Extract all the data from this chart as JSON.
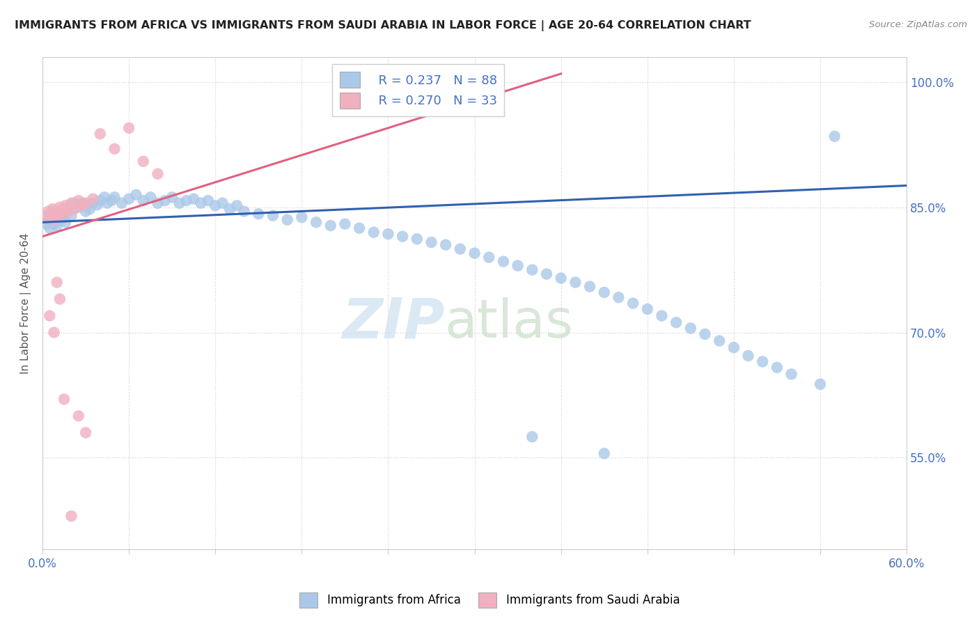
{
  "title": "IMMIGRANTS FROM AFRICA VS IMMIGRANTS FROM SAUDI ARABIA IN LABOR FORCE | AGE 20-64 CORRELATION CHART",
  "source": "Source: ZipAtlas.com",
  "ylabel": "In Labor Force | Age 20-64",
  "legend_blue_label": "Immigrants from Africa",
  "legend_pink_label": "Immigrants from Saudi Arabia",
  "R_blue": 0.237,
  "N_blue": 88,
  "R_pink": 0.27,
  "N_pink": 33,
  "xlim": [
    0.0,
    0.6
  ],
  "ylim": [
    0.44,
    1.03
  ],
  "blue_color": "#aac8e8",
  "pink_color": "#f0b0c0",
  "trend_blue": "#3060b0",
  "trend_pink": "#e06080",
  "background_color": "#ffffff",
  "grid_color": "#d0d0d0",
  "right_tick_color": "#4472c4",
  "bottom_tick_color": "#4472c4",
  "title_color": "#222222",
  "source_color": "#888888",
  "ylabel_color": "#555555",
  "blue_x": [
    0.003,
    0.004,
    0.005,
    0.006,
    0.007,
    0.008,
    0.009,
    0.01,
    0.011,
    0.012,
    0.013,
    0.014,
    0.015,
    0.016,
    0.018,
    0.02,
    0.022,
    0.025,
    0.028,
    0.03,
    0.033,
    0.035,
    0.038,
    0.04,
    0.043,
    0.045,
    0.048,
    0.05,
    0.055,
    0.06,
    0.065,
    0.07,
    0.075,
    0.08,
    0.085,
    0.09,
    0.095,
    0.1,
    0.105,
    0.11,
    0.115,
    0.12,
    0.125,
    0.13,
    0.135,
    0.14,
    0.15,
    0.16,
    0.17,
    0.18,
    0.19,
    0.2,
    0.21,
    0.22,
    0.23,
    0.24,
    0.25,
    0.26,
    0.27,
    0.28,
    0.29,
    0.3,
    0.31,
    0.32,
    0.33,
    0.34,
    0.35,
    0.36,
    0.37,
    0.38,
    0.39,
    0.4,
    0.41,
    0.42,
    0.43,
    0.44,
    0.45,
    0.46,
    0.47,
    0.48,
    0.49,
    0.5,
    0.51,
    0.52,
    0.54,
    0.55,
    0.34,
    0.39
  ],
  "blue_y": [
    0.83,
    0.835,
    0.825,
    0.84,
    0.845,
    0.83,
    0.832,
    0.828,
    0.84,
    0.845,
    0.835,
    0.842,
    0.838,
    0.832,
    0.848,
    0.84,
    0.855,
    0.85,
    0.855,
    0.845,
    0.848,
    0.855,
    0.853,
    0.858,
    0.862,
    0.855,
    0.858,
    0.862,
    0.855,
    0.86,
    0.865,
    0.858,
    0.862,
    0.855,
    0.858,
    0.862,
    0.855,
    0.858,
    0.86,
    0.855,
    0.858,
    0.852,
    0.855,
    0.848,
    0.852,
    0.845,
    0.842,
    0.84,
    0.835,
    0.838,
    0.832,
    0.828,
    0.83,
    0.825,
    0.82,
    0.818,
    0.815,
    0.812,
    0.808,
    0.805,
    0.8,
    0.795,
    0.79,
    0.785,
    0.78,
    0.775,
    0.77,
    0.765,
    0.76,
    0.755,
    0.748,
    0.742,
    0.735,
    0.728,
    0.72,
    0.712,
    0.705,
    0.698,
    0.69,
    0.682,
    0.672,
    0.665,
    0.658,
    0.65,
    0.638,
    0.935,
    0.575,
    0.555
  ],
  "pink_x": [
    0.003,
    0.004,
    0.005,
    0.006,
    0.007,
    0.008,
    0.009,
    0.01,
    0.011,
    0.012,
    0.013,
    0.015,
    0.016,
    0.018,
    0.02,
    0.022,
    0.025,
    0.028,
    0.03,
    0.035,
    0.04,
    0.05,
    0.06,
    0.07,
    0.08,
    0.01,
    0.012,
    0.005,
    0.008,
    0.015,
    0.02,
    0.025,
    0.03
  ],
  "pink_y": [
    0.84,
    0.845,
    0.838,
    0.842,
    0.848,
    0.835,
    0.842,
    0.838,
    0.845,
    0.85,
    0.842,
    0.848,
    0.852,
    0.845,
    0.855,
    0.848,
    0.858,
    0.852,
    0.855,
    0.86,
    0.938,
    0.92,
    0.945,
    0.905,
    0.89,
    0.76,
    0.74,
    0.72,
    0.7,
    0.62,
    0.48,
    0.6,
    0.58
  ],
  "blue_trend": [
    0.0,
    0.6,
    0.832,
    0.876
  ],
  "pink_trend_x": [
    0.0,
    0.36
  ],
  "pink_trend_y": [
    0.815,
    1.01
  ],
  "watermark_zip_color": "#cce0f0",
  "watermark_atlas_color": "#c0d8c0"
}
